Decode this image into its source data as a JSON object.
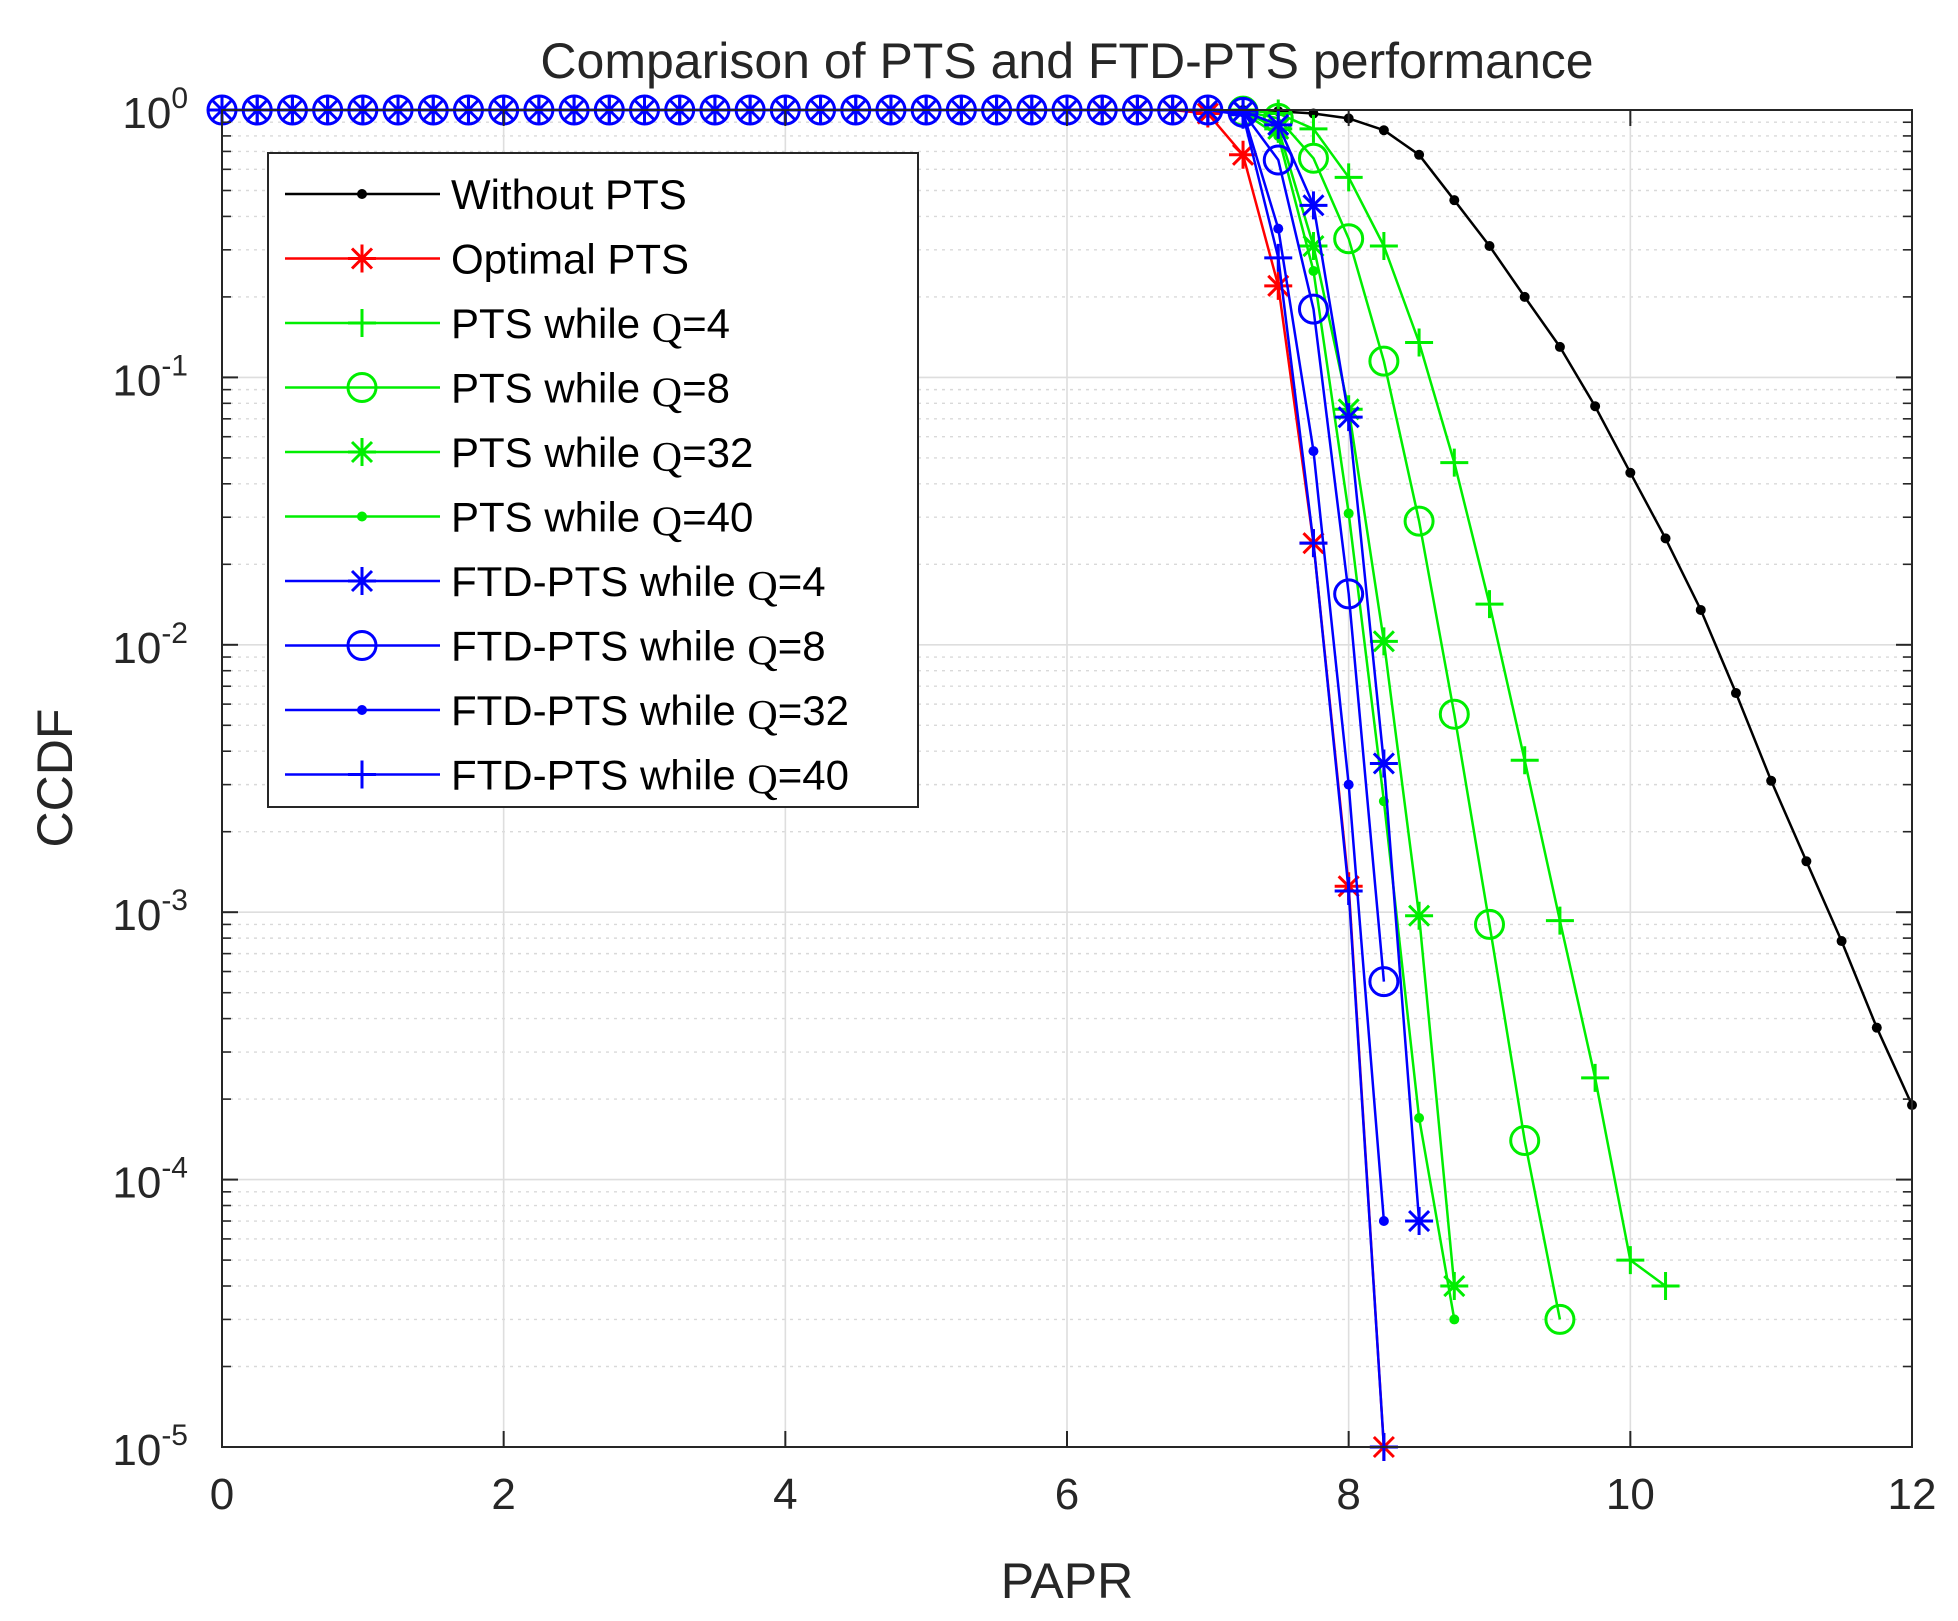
{
  "chart_data": {
    "type": "line",
    "title": "Comparison of PTS and FTD-PTS performance",
    "xlabel": "PAPR",
    "ylabel": "CCDF",
    "xlim": [
      0,
      12
    ],
    "ylim": [
      1e-05,
      1
    ],
    "yscale": "log",
    "grid": true,
    "minor_grid": true,
    "legend_position": "top-left",
    "x_ticks": [
      {
        "value": 0,
        "label": "0"
      },
      {
        "value": 2,
        "label": "2"
      },
      {
        "value": 4,
        "label": "4"
      },
      {
        "value": 6,
        "label": "6"
      },
      {
        "value": 8,
        "label": "8"
      },
      {
        "value": 10,
        "label": "10"
      },
      {
        "value": 12,
        "label": "12"
      }
    ],
    "y_ticks": [
      {
        "value": 1,
        "base": "10",
        "exp": "0"
      },
      {
        "value": 0.1,
        "base": "10",
        "exp": "-1"
      },
      {
        "value": 0.01,
        "base": "10",
        "exp": "-2"
      },
      {
        "value": 0.001,
        "base": "10",
        "exp": "-3"
      },
      {
        "value": 0.0001,
        "base": "10",
        "exp": "-4"
      },
      {
        "value": 1e-05,
        "base": "10",
        "exp": "-5"
      }
    ],
    "series": [
      {
        "name": "Without PTS",
        "label_prefix": "Without PTS",
        "label_q": "",
        "label_suffix": "",
        "color": "#000000",
        "marker": "dot",
        "x": [
          7.25,
          7.5,
          7.75,
          8.0,
          8.25,
          8.5,
          8.75,
          9.0,
          9.25,
          9.5,
          9.75,
          10.0,
          10.25,
          10.5,
          10.75,
          11.0,
          11.25,
          11.5,
          11.75,
          12.0
        ],
        "y": [
          1.0,
          0.99,
          0.97,
          0.93,
          0.84,
          0.68,
          0.46,
          0.31,
          0.2,
          0.13,
          0.078,
          0.044,
          0.025,
          0.0135,
          0.0066,
          0.0031,
          0.00155,
          0.00078,
          0.00037,
          0.00019
        ]
      },
      {
        "name": "Optimal PTS",
        "label_prefix": "Optimal PTS",
        "label_q": "",
        "label_suffix": "",
        "color": "#ff0000",
        "marker": "asterisk",
        "x": [
          6.25,
          6.5,
          6.75,
          7.0,
          7.25,
          7.5,
          7.75,
          8.0,
          8.25
        ],
        "y": [
          1.0,
          1.0,
          1.0,
          0.97,
          0.68,
          0.22,
          0.024,
          0.00125,
          1e-05
        ]
      },
      {
        "name": "PTS while Q=4",
        "label_prefix": "PTS while ",
        "label_q": "Q",
        "label_suffix": "=4",
        "color": "#00ee00",
        "marker": "plus",
        "x": [
          7.25,
          7.5,
          7.75,
          8.0,
          8.25,
          8.5,
          8.75,
          9.0,
          9.25,
          9.5,
          9.75,
          10.0,
          10.25
        ],
        "y": [
          1.0,
          0.97,
          0.85,
          0.56,
          0.31,
          0.135,
          0.048,
          0.0142,
          0.0037,
          0.00093,
          0.00024,
          5e-05,
          4e-05
        ]
      },
      {
        "name": "PTS while Q=8",
        "label_prefix": "PTS while ",
        "label_q": "Q",
        "label_suffix": "=8",
        "color": "#00ee00",
        "marker": "circle",
        "x": [
          7.25,
          7.5,
          7.75,
          8.0,
          8.25,
          8.5,
          8.75,
          9.0,
          9.25,
          9.5
        ],
        "y": [
          0.99,
          0.93,
          0.66,
          0.33,
          0.115,
          0.029,
          0.0055,
          0.0009,
          0.00014,
          3e-05
        ]
      },
      {
        "name": "PTS while Q=32",
        "label_prefix": "PTS while ",
        "label_q": "Q",
        "label_suffix": "=32",
        "color": "#00ee00",
        "marker": "asterisk",
        "x": [
          7.25,
          7.5,
          7.75,
          8.0,
          8.25,
          8.5,
          8.75
        ],
        "y": [
          0.99,
          0.85,
          0.31,
          0.076,
          0.0103,
          0.00097,
          4e-05
        ]
      },
      {
        "name": "PTS while Q=40",
        "label_prefix": "PTS while ",
        "label_q": "Q",
        "label_suffix": "=40",
        "color": "#00ee00",
        "marker": "dot",
        "x": [
          7.25,
          7.5,
          7.75,
          8.0,
          8.25,
          8.5,
          8.75
        ],
        "y": [
          0.98,
          0.8,
          0.25,
          0.031,
          0.0026,
          0.00017,
          3e-05
        ]
      },
      {
        "name": "FTD-PTS while Q=4",
        "label_prefix": "FTD-PTS while ",
        "label_q": "Q",
        "label_suffix": "=4",
        "color": "#0000ff",
        "marker": "asterisk",
        "x": [
          0.0,
          0.25,
          0.5,
          0.75,
          1.0,
          1.25,
          1.5,
          1.75,
          2.0,
          2.25,
          2.5,
          2.75,
          3.0,
          3.25,
          3.5,
          3.75,
          4.0,
          4.25,
          4.5,
          4.75,
          5.0,
          5.25,
          5.5,
          5.75,
          6.0,
          6.25,
          6.5,
          6.75,
          7.0,
          7.25,
          7.5,
          7.75,
          8.0,
          8.25,
          8.5
        ],
        "y": [
          1,
          1,
          1,
          1,
          1,
          1,
          1,
          1,
          1,
          1,
          1,
          1,
          1,
          1,
          1,
          1,
          1,
          1,
          1,
          1,
          1,
          1,
          1,
          1,
          1,
          1,
          1,
          1,
          1,
          0.99,
          0.88,
          0.44,
          0.071,
          0.0036,
          7e-05
        ]
      },
      {
        "name": "FTD-PTS while Q=8",
        "label_prefix": "FTD-PTS while ",
        "label_q": "Q",
        "label_suffix": "=8",
        "color": "#0000ff",
        "marker": "circle",
        "x": [
          0.0,
          0.25,
          0.5,
          0.75,
          1.0,
          1.25,
          1.5,
          1.75,
          2.0,
          2.25,
          2.5,
          2.75,
          3.0,
          3.25,
          3.5,
          3.75,
          4.0,
          4.25,
          4.5,
          4.75,
          5.0,
          5.25,
          5.5,
          5.75,
          6.0,
          6.25,
          6.5,
          6.75,
          7.0,
          7.25,
          7.5,
          7.75,
          8.0,
          8.25
        ],
        "y": [
          1,
          1,
          1,
          1,
          1,
          1,
          1,
          1,
          1,
          1,
          1,
          1,
          1,
          1,
          1,
          1,
          1,
          1,
          1,
          1,
          1,
          1,
          1,
          1,
          1,
          1,
          1,
          1,
          1,
          0.98,
          0.65,
          0.18,
          0.0155,
          0.00055
        ]
      },
      {
        "name": "FTD-PTS while Q=32",
        "label_prefix": "FTD-PTS while ",
        "label_q": "Q",
        "label_suffix": "=32",
        "color": "#0000ff",
        "marker": "dot",
        "x": [
          7.25,
          7.5,
          7.75,
          8.0,
          8.25
        ],
        "y": [
          0.98,
          0.36,
          0.053,
          0.003,
          7e-05
        ]
      },
      {
        "name": "FTD-PTS while Q=40",
        "label_prefix": "FTD-PTS while ",
        "label_q": "Q",
        "label_suffix": "=40",
        "color": "#0000ff",
        "marker": "plus",
        "x": [
          0.0,
          0.25,
          0.5,
          0.75,
          1.0,
          1.25,
          1.5,
          1.75,
          2.0,
          2.25,
          2.5,
          2.75,
          3.0,
          3.25,
          3.5,
          3.75,
          4.0,
          4.25,
          4.5,
          4.75,
          5.0,
          5.25,
          5.5,
          5.75,
          6.0,
          6.25,
          6.5,
          6.75,
          7.0,
          7.25,
          7.5,
          7.75,
          8.0,
          8.25
        ],
        "y": [
          1,
          1,
          1,
          1,
          1,
          1,
          1,
          1,
          1,
          1,
          1,
          1,
          1,
          1,
          1,
          1,
          1,
          1,
          1,
          1,
          1,
          1,
          1,
          1,
          1,
          1,
          1,
          1,
          1,
          0.96,
          0.28,
          0.024,
          0.0012,
          1e-05
        ]
      }
    ]
  }
}
